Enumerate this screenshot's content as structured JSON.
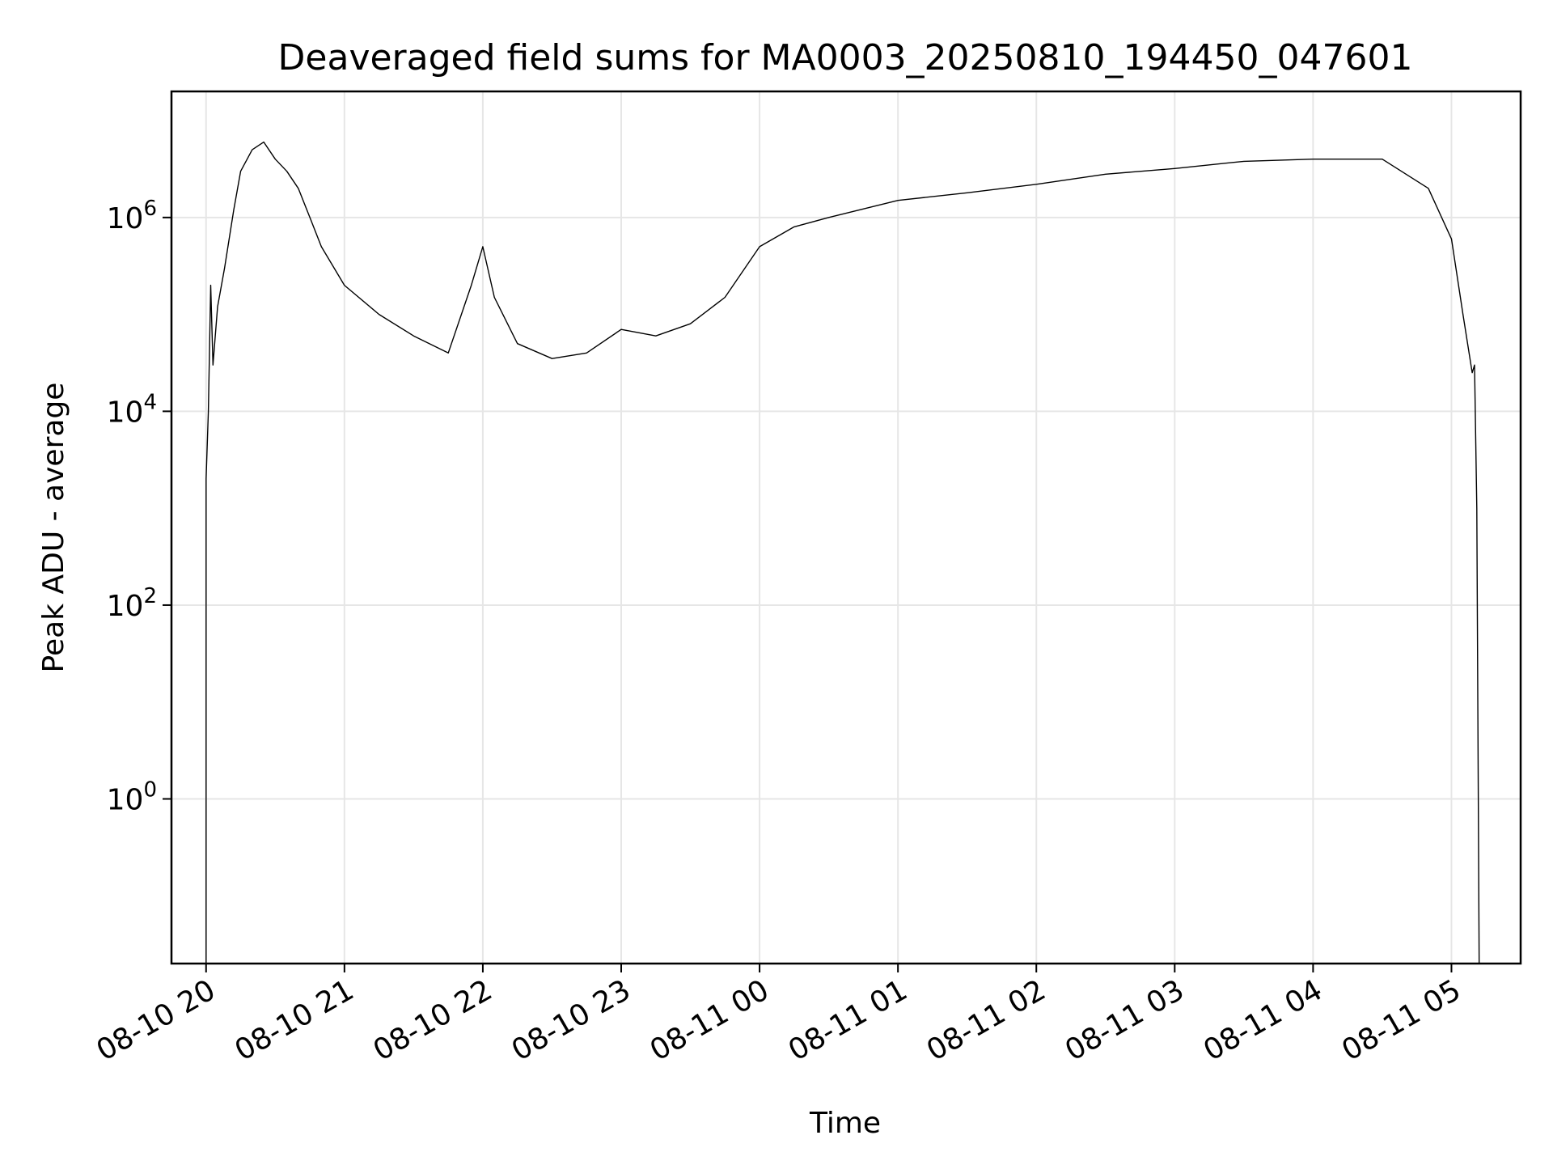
{
  "chart_data": {
    "type": "line",
    "title": "Deaveraged field sums for MA0003_20250810_194450_047601",
    "xlabel": "Time",
    "ylabel": "Peak ADU - average",
    "yscale": "log",
    "grid": true,
    "x_start": "2025-08-10T19:45",
    "x_end": "2025-08-11T05:30",
    "xlim": [
      "2025-08-10T19:45",
      "2025-08-11T05:30"
    ],
    "ylim": [
      0.02,
      20000000
    ],
    "x_ticks": [
      {
        "label": "08-10 20",
        "value": "2025-08-10T20:00"
      },
      {
        "label": "08-10 21",
        "value": "2025-08-10T21:00"
      },
      {
        "label": "08-10 22",
        "value": "2025-08-10T22:00"
      },
      {
        "label": "08-10 23",
        "value": "2025-08-10T23:00"
      },
      {
        "label": "08-11 00",
        "value": "2025-08-11T00:00"
      },
      {
        "label": "08-11 01",
        "value": "2025-08-11T01:00"
      },
      {
        "label": "08-11 02",
        "value": "2025-08-11T02:00"
      },
      {
        "label": "08-11 03",
        "value": "2025-08-11T03:00"
      },
      {
        "label": "08-11 04",
        "value": "2025-08-11T04:00"
      },
      {
        "label": "08-11 05",
        "value": "2025-08-11T05:00"
      }
    ],
    "y_ticks": [
      {
        "base": "10",
        "exp": "0",
        "value": 1
      },
      {
        "base": "10",
        "exp": "2",
        "value": 100
      },
      {
        "base": "10",
        "exp": "4",
        "value": 10000
      },
      {
        "base": "10",
        "exp": "6",
        "value": 1000000
      }
    ],
    "series": [
      {
        "color": "#000000",
        "points": [
          [
            "2025-08-10T20:00",
            0.02
          ],
          [
            "2025-08-10T20:00",
            2000
          ],
          [
            "2025-08-10T20:01",
            10000
          ],
          [
            "2025-08-10T20:02",
            200000
          ],
          [
            "2025-08-10T20:03",
            30000
          ],
          [
            "2025-08-10T20:05",
            120000
          ],
          [
            "2025-08-10T20:08",
            300000
          ],
          [
            "2025-08-10T20:12",
            1200000
          ],
          [
            "2025-08-10T20:15",
            3000000
          ],
          [
            "2025-08-10T20:20",
            5000000
          ],
          [
            "2025-08-10T20:25",
            6000000
          ],
          [
            "2025-08-10T20:30",
            4000000
          ],
          [
            "2025-08-10T20:35",
            3000000
          ],
          [
            "2025-08-10T20:40",
            2000000
          ],
          [
            "2025-08-10T20:45",
            1000000
          ],
          [
            "2025-08-10T20:50",
            500000
          ],
          [
            "2025-08-10T21:00",
            200000
          ],
          [
            "2025-08-10T21:15",
            100000
          ],
          [
            "2025-08-10T21:30",
            60000
          ],
          [
            "2025-08-10T21:45",
            40000
          ],
          [
            "2025-08-10T21:55",
            200000
          ],
          [
            "2025-08-10T22:00",
            500000
          ],
          [
            "2025-08-10T22:05",
            150000
          ],
          [
            "2025-08-10T22:15",
            50000
          ],
          [
            "2025-08-10T22:30",
            35000
          ],
          [
            "2025-08-10T22:45",
            40000
          ],
          [
            "2025-08-10T23:00",
            70000
          ],
          [
            "2025-08-10T23:15",
            60000
          ],
          [
            "2025-08-10T23:30",
            80000
          ],
          [
            "2025-08-10T23:45",
            150000
          ],
          [
            "2025-08-11T00:00",
            500000
          ],
          [
            "2025-08-11T00:15",
            800000
          ],
          [
            "2025-08-11T00:30",
            1000000
          ],
          [
            "2025-08-11T01:00",
            1500000
          ],
          [
            "2025-08-11T01:30",
            1800000
          ],
          [
            "2025-08-11T02:00",
            2200000
          ],
          [
            "2025-08-11T02:30",
            2800000
          ],
          [
            "2025-08-11T03:00",
            3200000
          ],
          [
            "2025-08-11T03:30",
            3800000
          ],
          [
            "2025-08-11T04:00",
            4000000
          ],
          [
            "2025-08-11T04:30",
            4000000
          ],
          [
            "2025-08-11T04:50",
            2000000
          ],
          [
            "2025-08-11T05:00",
            600000
          ],
          [
            "2025-08-11T05:05",
            100000
          ],
          [
            "2025-08-11T05:09",
            25000
          ],
          [
            "2025-08-11T05:10",
            30000
          ],
          [
            "2025-08-11T05:11",
            1000
          ],
          [
            "2025-08-11T05:12",
            0.02
          ]
        ]
      }
    ]
  }
}
